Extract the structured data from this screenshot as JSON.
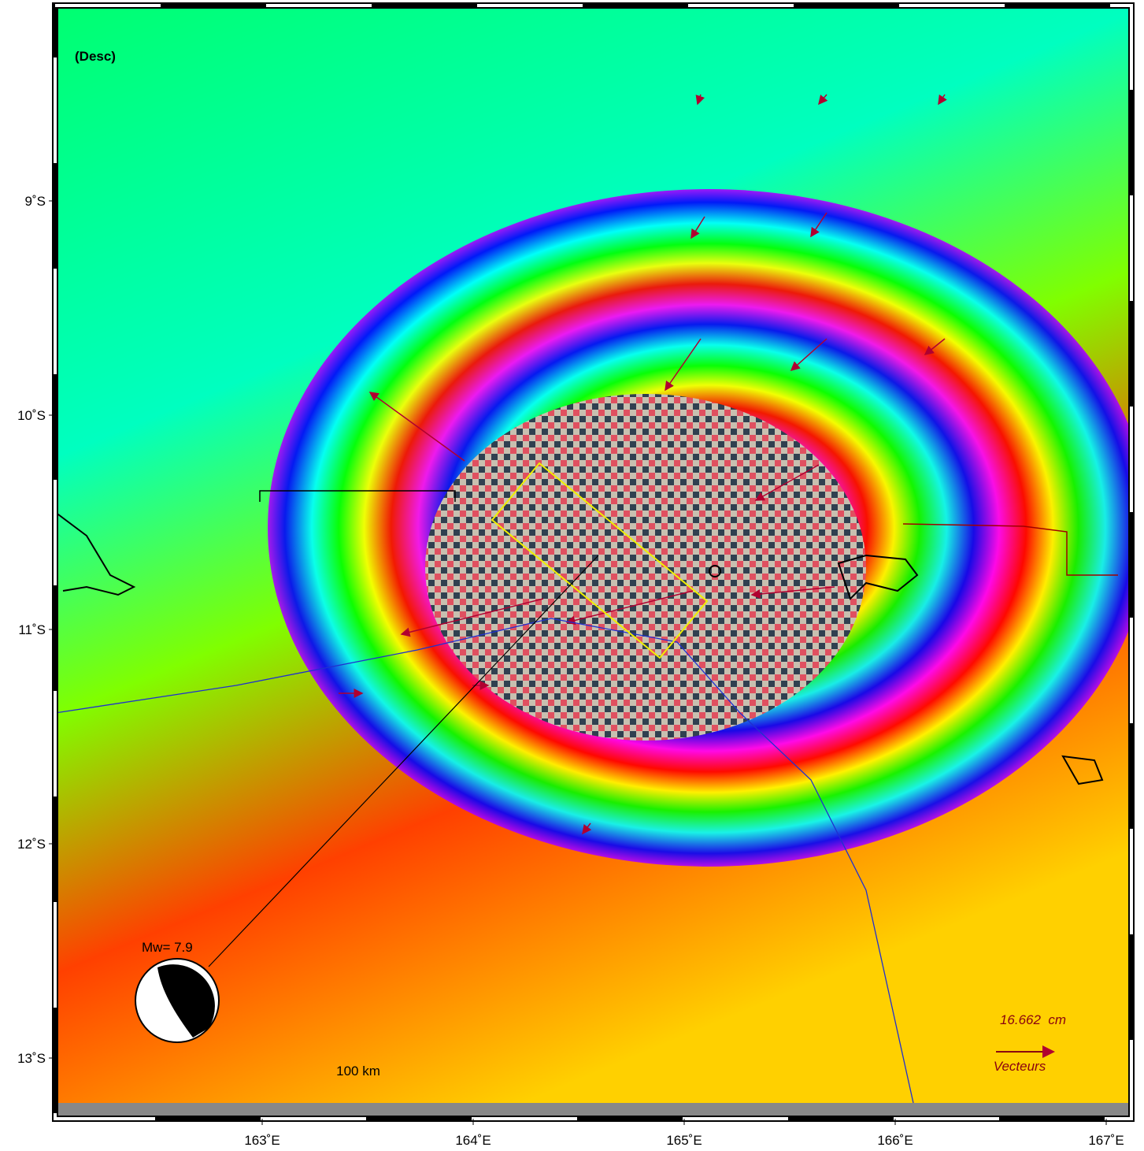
{
  "panel_label": "(Desc)",
  "lat_ticks": [
    {
      "value": 9,
      "label": "9˚S"
    },
    {
      "value": 10,
      "label": "10˚S"
    },
    {
      "value": 11,
      "label": "11˚S"
    },
    {
      "value": 12,
      "label": "12˚S"
    },
    {
      "value": 13,
      "label": "13˚S"
    }
  ],
  "lon_ticks": [
    {
      "value": 163,
      "label": "163˚E"
    },
    {
      "value": 164,
      "label": "164˚E"
    },
    {
      "value": 165,
      "label": "165˚E"
    },
    {
      "value": 166,
      "label": "166˚E"
    },
    {
      "value": 167,
      "label": "167˚E"
    }
  ],
  "magnitude_label": "Mw= 7.9",
  "scale_bar_label": "100 km",
  "vector_scale": {
    "label": "16.662  cm",
    "caption": "Vecteurs"
  }
}
